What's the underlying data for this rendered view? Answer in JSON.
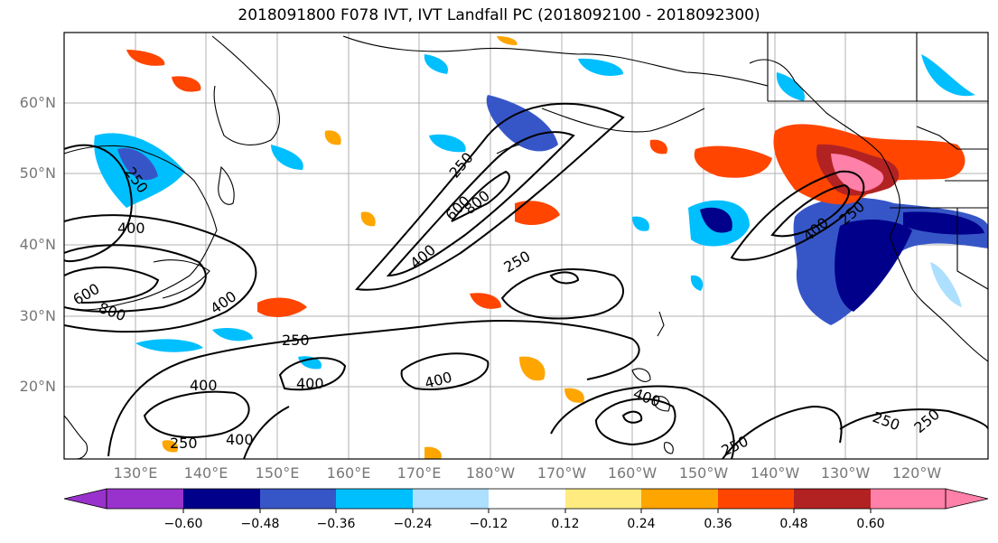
{
  "title": "2018091800 F078 IVT, IVT Landfall PC (2018092100 - 2018092300)",
  "lat_labels": [
    "60°N",
    "50°N",
    "40°N",
    "30°N",
    "20°N"
  ],
  "lon_labels": [
    "130°E",
    "140°E",
    "150°E",
    "160°E",
    "170°E",
    "180°W",
    "170°W",
    "160°W",
    "150°W",
    "140°W",
    "130°W",
    "120°W"
  ],
  "contour_labels": {
    "c250": "250",
    "c400": "400",
    "c600": "600",
    "c800": "800"
  },
  "colorbar": {
    "colors": [
      "#9932CC",
      "#00008B",
      "#3656C8",
      "#00BFFF",
      "#ADDFFF",
      "#FFFFFF",
      "#FFEB80",
      "#FFA500",
      "#FF4500",
      "#B22222",
      "#FF80A8"
    ],
    "ticks": [
      "−0.60",
      "−0.48",
      "−0.36",
      "−0.24",
      "−0.12",
      "0.12",
      "0.24",
      "0.36",
      "0.48",
      "0.60"
    ]
  }
}
